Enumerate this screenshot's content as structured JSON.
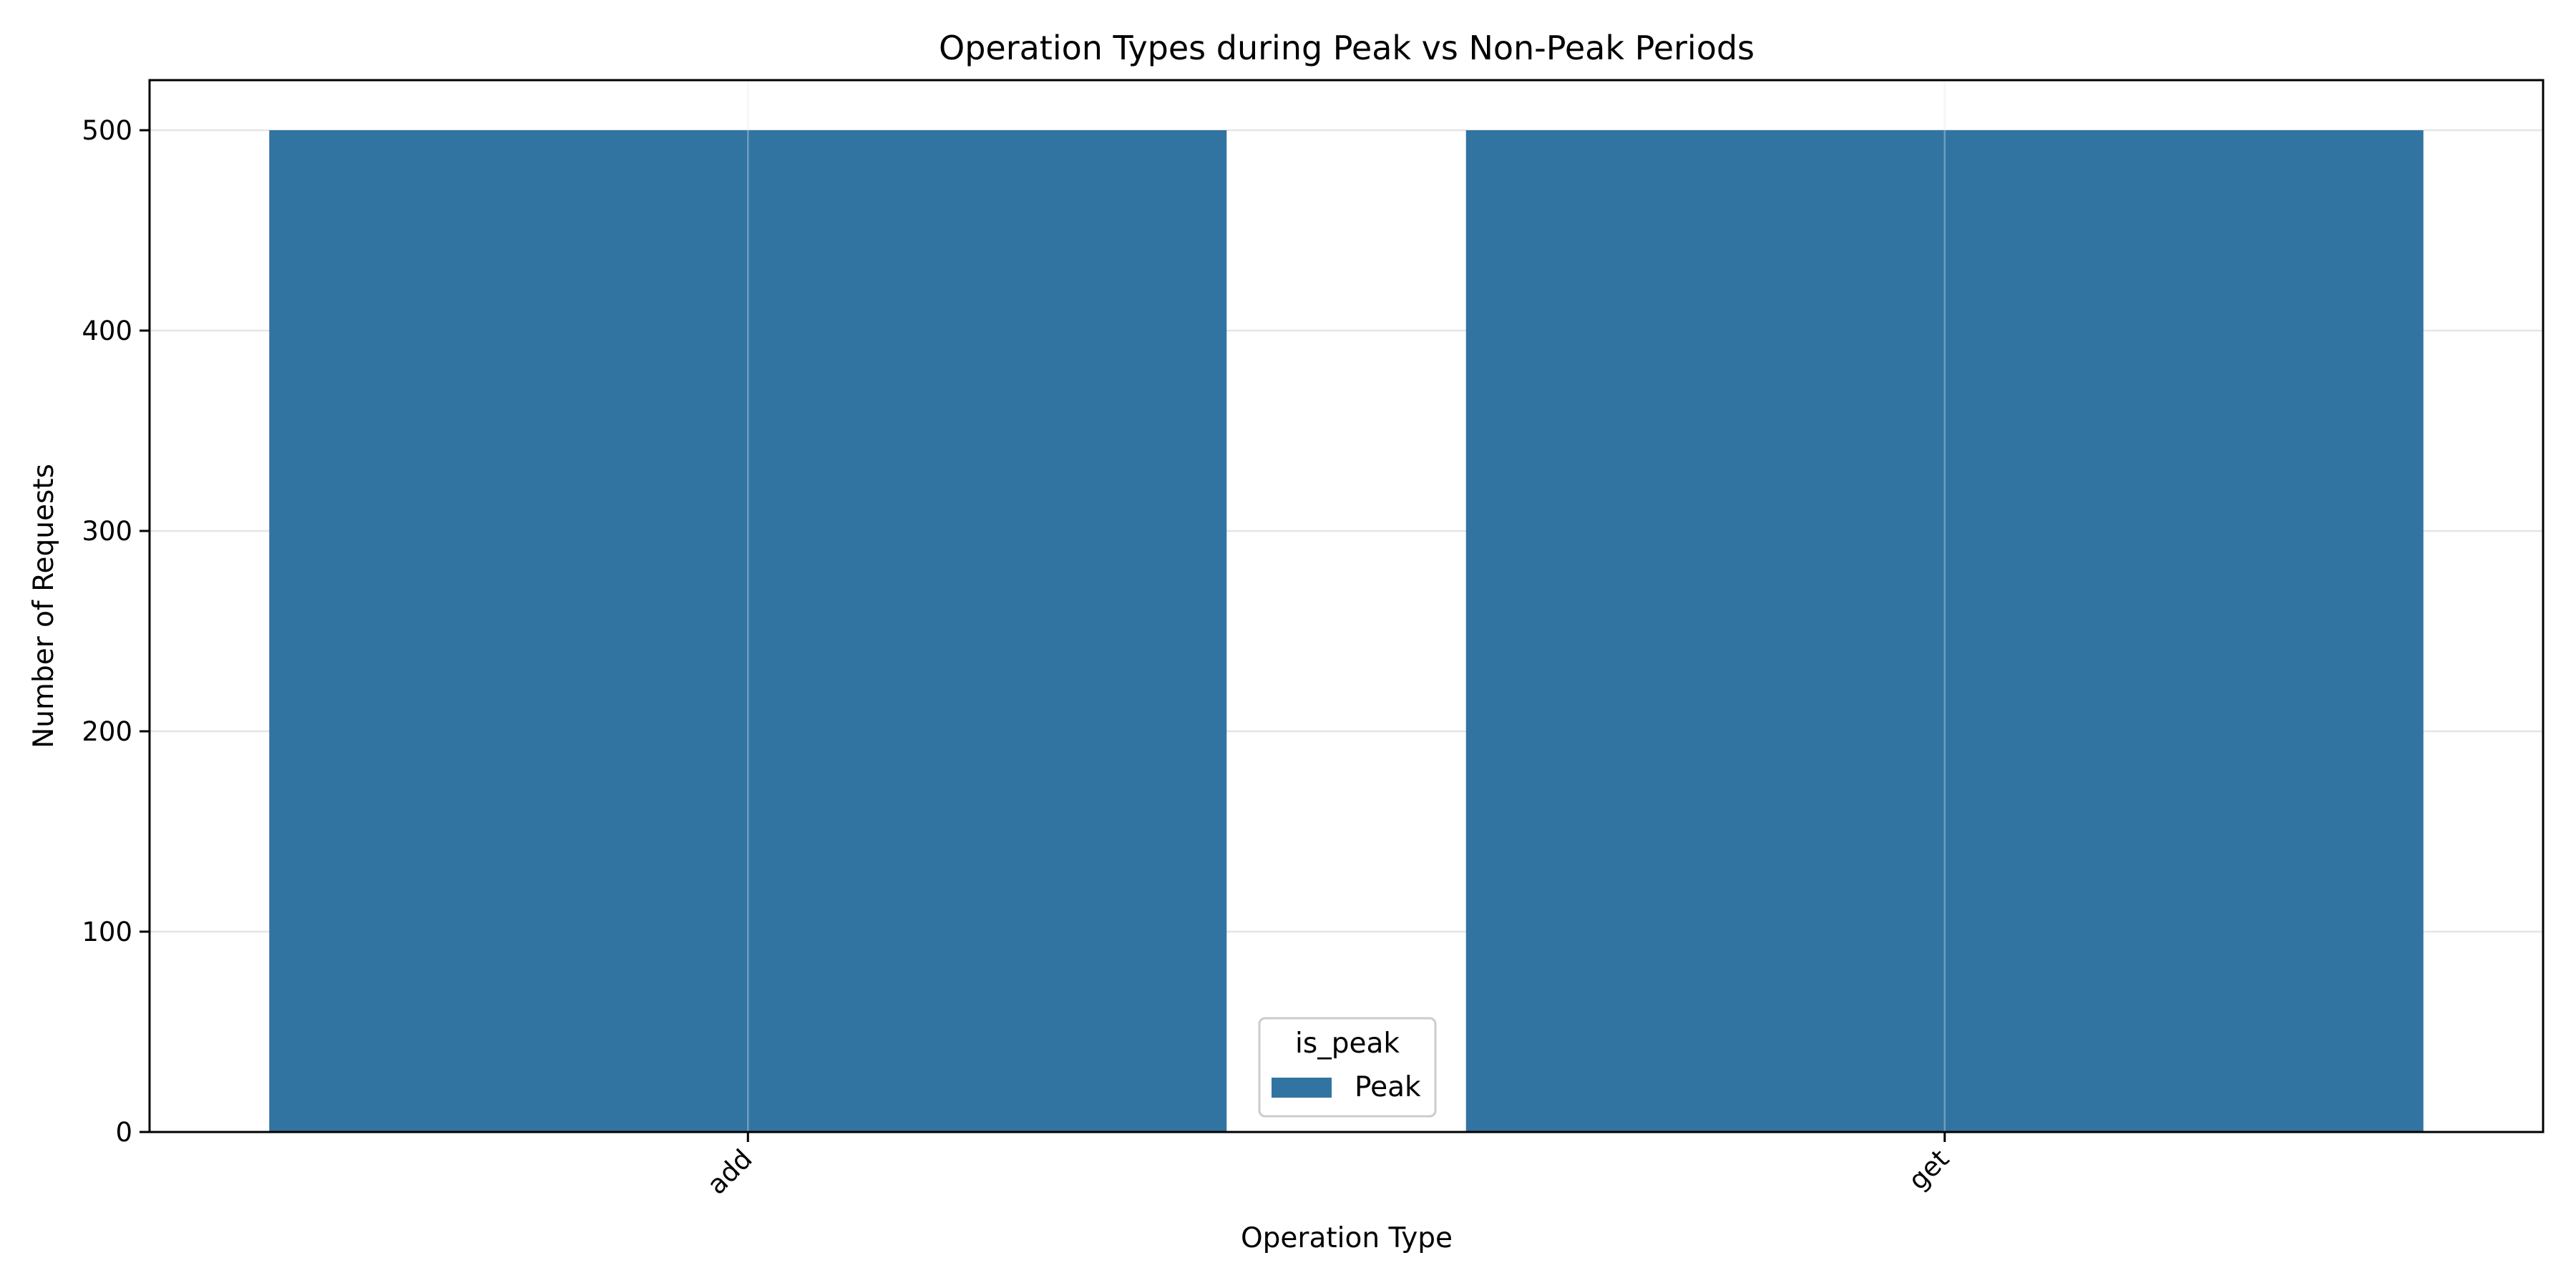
{
  "chart_data": {
    "type": "bar",
    "title": "Operation Types during Peak vs Non-Peak Periods",
    "xlabel": "Operation Type",
    "ylabel": "Number of Requests",
    "categories": [
      "add",
      "get"
    ],
    "series": [
      {
        "name": "Peak",
        "values": [
          500,
          500
        ],
        "color": "#3274a1"
      }
    ],
    "ylim": [
      0,
      525
    ],
    "yticks": [
      0,
      100,
      200,
      300,
      400,
      500
    ],
    "grid": true,
    "legend": {
      "title": "is_peak",
      "placement": "lower-center"
    }
  }
}
